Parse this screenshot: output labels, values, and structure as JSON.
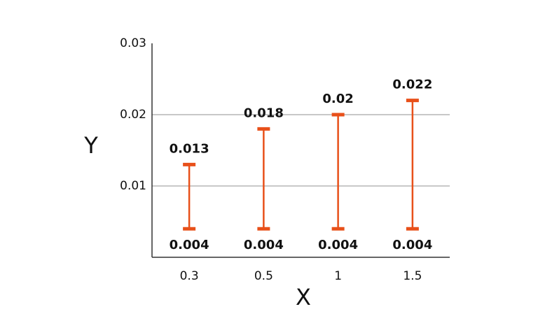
{
  "chart_data": {
    "type": "range",
    "x_label": "X",
    "y_label": "Y",
    "categories": [
      "0.3",
      "0.5",
      "1",
      "1.5"
    ],
    "low": [
      0.004,
      0.004,
      0.004,
      0.004
    ],
    "high": [
      0.013,
      0.018,
      0.02,
      0.022
    ],
    "color": "#e8501a",
    "ylim": [
      0,
      0.03
    ],
    "yticks": [
      0.01,
      0.02,
      0.03
    ],
    "grid": true
  }
}
